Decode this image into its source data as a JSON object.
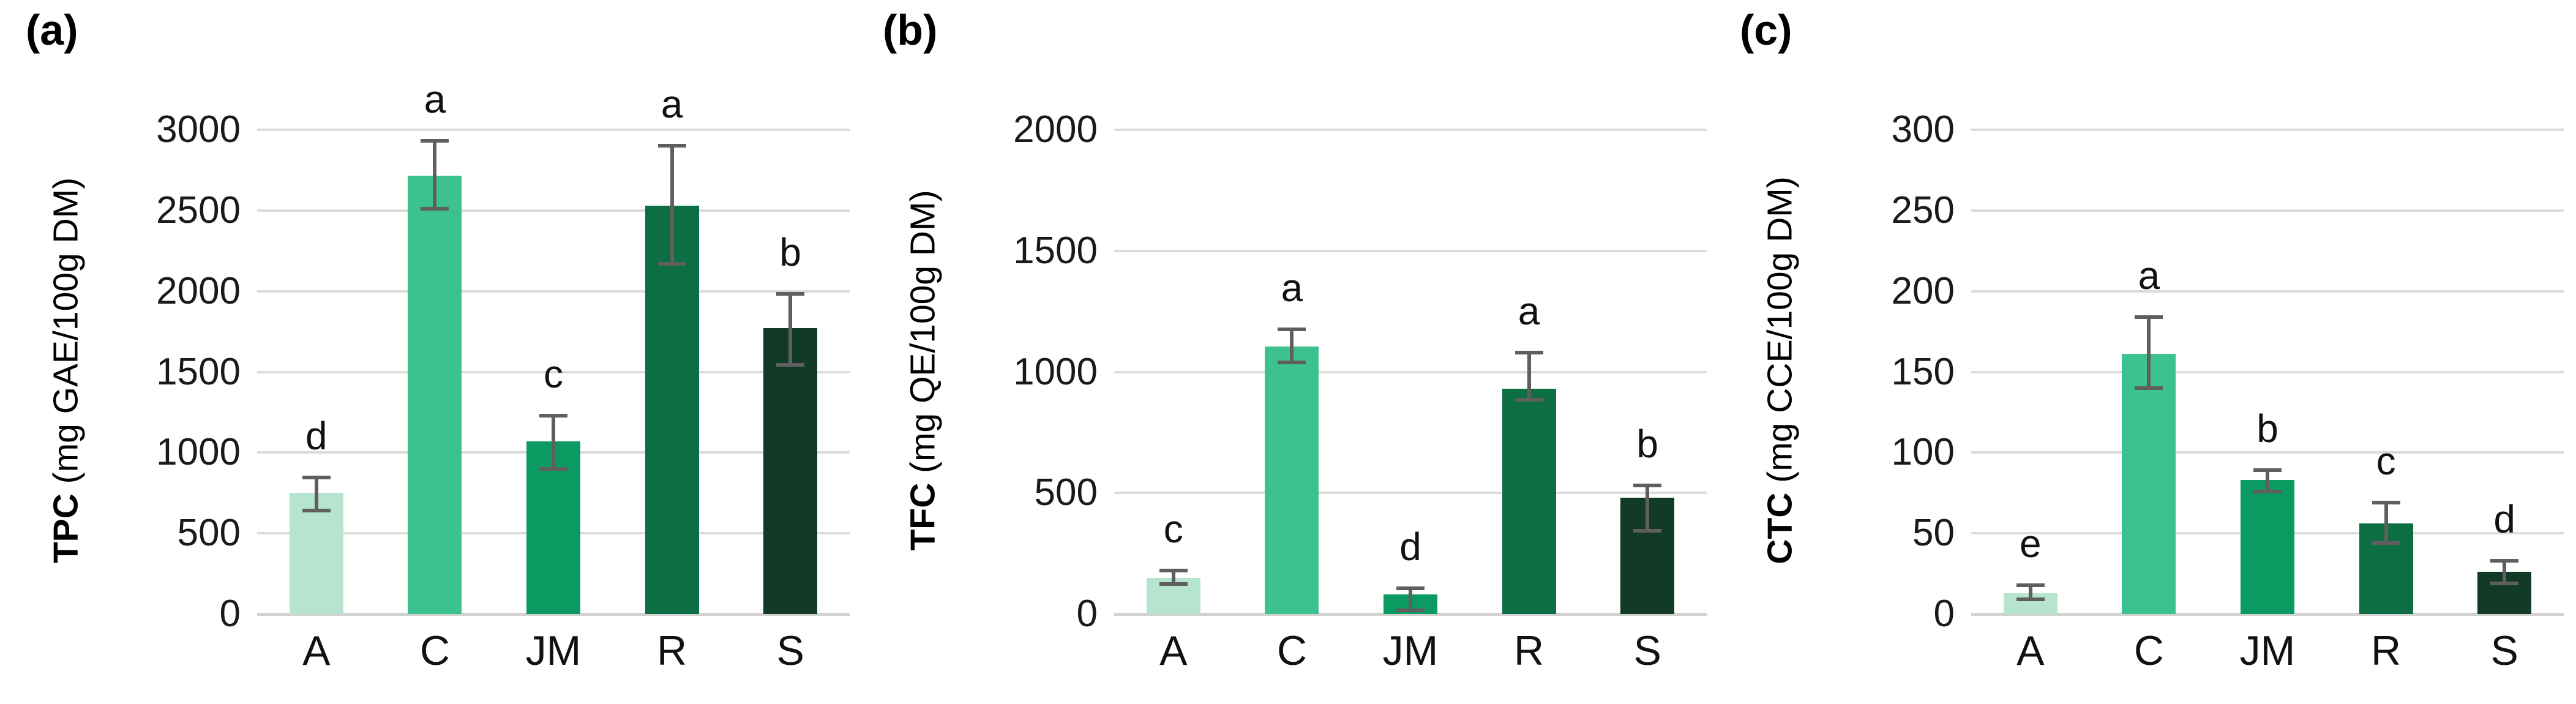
{
  "figure": {
    "background": "#ffffff",
    "bar_colors": [
      "#b7e4cf",
      "#3dc28f",
      "#0b9b62",
      "#0d6e44",
      "#123b27"
    ],
    "error_bar_color": "#5f5f5f",
    "gridline_color": "#dcdcdc",
    "axis_line_color": "#d2d2d2",
    "text_color": "#111111"
  },
  "chart_data": [
    {
      "type": "bar",
      "panel_label": "(a)",
      "ylabel_bold": "TPC",
      "ylabel_units": " (mg GAE/100g DM)",
      "categories": [
        "A",
        "C",
        "JM",
        "R",
        "S"
      ],
      "values": [
        750,
        2715,
        1070,
        2530,
        1770
      ],
      "error_low": [
        640,
        2510,
        900,
        2170,
        1545
      ],
      "error_high": [
        845,
        2930,
        1230,
        2900,
        1985
      ],
      "sig_letters": [
        "d",
        "a",
        "c",
        "a",
        "b"
      ],
      "ylim": [
        0,
        3000
      ],
      "ytick_step": 500,
      "ytick_labels": [
        "0",
        "500",
        "1000",
        "1500",
        "2000",
        "2500",
        "3000"
      ],
      "grid": true,
      "legend": false
    },
    {
      "type": "bar",
      "panel_label": "(b)",
      "ylabel_bold": "TFC",
      "ylabel_units": " (mg QE/100g DM)",
      "categories": [
        "A",
        "C",
        "JM",
        "R",
        "S"
      ],
      "values": [
        150,
        1105,
        80,
        930,
        480
      ],
      "error_low": [
        125,
        1040,
        15,
        885,
        345
      ],
      "error_high": [
        180,
        1175,
        105,
        1080,
        530
      ],
      "sig_letters": [
        "c",
        "a",
        "d",
        "a",
        "b"
      ],
      "ylim": [
        0,
        2000
      ],
      "ytick_step": 500,
      "ytick_labels": [
        "0",
        "500",
        "1000",
        "1500",
        "2000"
      ],
      "grid": true,
      "legend": false
    },
    {
      "type": "bar",
      "panel_label": "(c)",
      "ylabel_bold": "CTC",
      "ylabel_units": " (mg CCE/100g DM)",
      "categories": [
        "A",
        "C",
        "JM",
        "R",
        "S"
      ],
      "values": [
        13,
        161,
        83,
        56,
        26
      ],
      "error_low": [
        9,
        140,
        76,
        44,
        19
      ],
      "error_high": [
        18,
        184,
        89,
        69,
        33
      ],
      "sig_letters": [
        "e",
        "a",
        "b",
        "c",
        "d"
      ],
      "ylim": [
        0,
        300
      ],
      "ytick_step": 50,
      "ytick_labels": [
        "0",
        "50",
        "100",
        "150",
        "200",
        "250",
        "300"
      ],
      "grid": true,
      "legend": false
    }
  ]
}
